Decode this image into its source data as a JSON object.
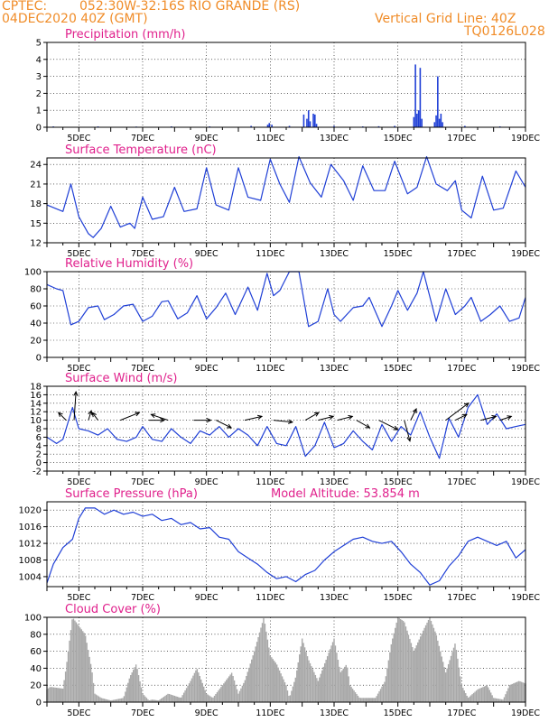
{
  "header": {
    "source": "CPTEC:",
    "location": "052:30W-32:16S  RIO GRANDE (RS)",
    "run": "04DEC2020 40Z (GMT)",
    "grid_note": "Vertical Grid Line: 40Z",
    "code": "TQ0126L028"
  },
  "colors": {
    "header": "#f08c28",
    "title": "#e0208c",
    "line": "#1f3fd6",
    "cloud": "#a8a8a8",
    "axis": "#000000"
  },
  "chart_data": [
    {
      "id": "precipitation",
      "type": "bar",
      "title": "Precipitation (mm/h)",
      "ylim": [
        0,
        5
      ],
      "yticks": [
        0,
        1,
        2,
        3,
        4,
        5
      ],
      "xlim": [
        4,
        19
      ],
      "xticks": [
        "5DEC",
        "7DEC",
        "9DEC",
        "11DEC",
        "13DEC",
        "15DEC",
        "17DEC",
        "19DEC"
      ],
      "grid": true,
      "x": [
        4.2,
        5.6,
        6.8,
        7.9,
        9.1,
        10.4,
        10.92,
        10.97,
        11.05,
        11.6,
        12.05,
        12.15,
        12.2,
        12.25,
        12.35,
        12.4,
        12.45,
        13.0,
        13.9,
        14.4,
        14.9,
        15.5,
        15.55,
        15.6,
        15.65,
        15.7,
        15.75,
        16.15,
        16.2,
        16.25,
        16.3,
        16.35,
        16.4,
        17.1,
        18.2
      ],
      "values": [
        0.05,
        0.05,
        0.04,
        0.05,
        0.05,
        0.08,
        0.15,
        0.25,
        0.15,
        0.08,
        0.75,
        0.5,
        1.0,
        0.35,
        0.8,
        0.75,
        0.2,
        0.08,
        0.05,
        0.06,
        0.08,
        0.6,
        3.7,
        0.8,
        1.0,
        3.5,
        0.5,
        0.3,
        0.7,
        3.0,
        0.5,
        0.8,
        0.3,
        0.08,
        0.05
      ]
    },
    {
      "id": "temperature",
      "type": "line",
      "title": "Surface Temperature (nC)",
      "ylim": [
        12,
        25
      ],
      "yticks": [
        12,
        15,
        18,
        21,
        24
      ],
      "xlim": [
        4,
        19
      ],
      "xticks": [
        "5DEC",
        "7DEC",
        "9DEC",
        "11DEC",
        "13DEC",
        "15DEC",
        "17DEC",
        "19DEC"
      ],
      "grid": true,
      "x": [
        4.0,
        4.3,
        4.5,
        4.75,
        5.0,
        5.3,
        5.45,
        5.7,
        6.0,
        6.3,
        6.6,
        6.75,
        7.0,
        7.3,
        7.65,
        8.0,
        8.3,
        8.7,
        9.0,
        9.3,
        9.7,
        10.0,
        10.3,
        10.7,
        11.0,
        11.3,
        11.6,
        11.9,
        12.25,
        12.6,
        12.9,
        13.3,
        13.6,
        13.9,
        14.25,
        14.6,
        14.9,
        15.3,
        15.6,
        15.9,
        16.2,
        16.55,
        16.8,
        17.0,
        17.3,
        17.65,
        18.0,
        18.3,
        18.7,
        19.0
      ],
      "values": [
        17.8,
        17.2,
        16.8,
        21.0,
        16.0,
        13.4,
        12.8,
        14.2,
        17.6,
        14.4,
        15.0,
        14.2,
        19.0,
        15.6,
        16.0,
        20.5,
        16.8,
        17.2,
        23.5,
        17.8,
        17.0,
        23.5,
        19.0,
        18.5,
        24.8,
        21.0,
        18.2,
        25.2,
        21.2,
        19.0,
        24.0,
        21.5,
        18.5,
        23.8,
        20.0,
        20.0,
        24.5,
        19.5,
        20.5,
        25.2,
        21.0,
        20.0,
        21.5,
        17.0,
        15.8,
        22.2,
        17.0,
        17.3,
        23.0,
        20.5
      ]
    },
    {
      "id": "humidity",
      "type": "line",
      "title": "Relative Humidity (%)",
      "ylim": [
        0,
        100
      ],
      "yticks": [
        0,
        20,
        40,
        60,
        80,
        100
      ],
      "xlim": [
        4,
        19
      ],
      "xticks": [
        "5DEC",
        "7DEC",
        "9DEC",
        "11DEC",
        "13DEC",
        "15DEC",
        "17DEC",
        "19DEC"
      ],
      "grid": true,
      "x": [
        4.0,
        4.3,
        4.5,
        4.75,
        5.0,
        5.3,
        5.6,
        5.8,
        6.1,
        6.4,
        6.7,
        7.0,
        7.3,
        7.6,
        7.8,
        8.1,
        8.4,
        8.7,
        9.0,
        9.3,
        9.6,
        9.9,
        10.3,
        10.6,
        10.9,
        11.1,
        11.3,
        11.6,
        11.9,
        12.2,
        12.5,
        12.8,
        13.0,
        13.2,
        13.6,
        13.9,
        14.1,
        14.5,
        14.8,
        15.0,
        15.3,
        15.6,
        15.8,
        16.2,
        16.5,
        16.8,
        17.1,
        17.3,
        17.6,
        17.9,
        18.2,
        18.5,
        18.8,
        19.0
      ],
      "values": [
        85,
        80,
        78,
        38,
        42,
        58,
        60,
        44,
        50,
        60,
        62,
        42,
        48,
        65,
        66,
        45,
        52,
        72,
        45,
        58,
        75,
        50,
        82,
        55,
        98,
        72,
        78,
        100,
        100,
        36,
        42,
        80,
        50,
        42,
        58,
        60,
        70,
        36,
        60,
        78,
        55,
        75,
        100,
        42,
        80,
        50,
        60,
        70,
        42,
        50,
        60,
        42,
        46,
        70
      ]
    },
    {
      "id": "wind",
      "type": "line",
      "title": "Surface Wind (m/s)",
      "ylim": [
        -2,
        18
      ],
      "yticks": [
        -2,
        0,
        2,
        4,
        6,
        8,
        10,
        12,
        14,
        16,
        18
      ],
      "xlim": [
        4,
        19
      ],
      "xticks": [
        "5DEC",
        "7DEC",
        "9DEC",
        "11DEC",
        "13DEC",
        "15DEC",
        "17DEC",
        "19DEC"
      ],
      "grid": true,
      "x": [
        4.0,
        4.3,
        4.5,
        4.8,
        5.0,
        5.3,
        5.6,
        5.9,
        6.2,
        6.5,
        6.8,
        7.0,
        7.3,
        7.6,
        7.9,
        8.2,
        8.5,
        8.8,
        9.1,
        9.4,
        9.7,
        10.0,
        10.3,
        10.6,
        10.9,
        11.2,
        11.5,
        11.8,
        12.1,
        12.4,
        12.7,
        13.0,
        13.3,
        13.6,
        13.9,
        14.2,
        14.5,
        14.8,
        15.1,
        15.4,
        15.7,
        16.0,
        16.3,
        16.6,
        16.9,
        17.2,
        17.5,
        17.8,
        18.1,
        18.4,
        18.7,
        19.0
      ],
      "values": [
        6.0,
        4.5,
        5.5,
        13.0,
        8.0,
        7.5,
        6.5,
        8.0,
        5.5,
        5.0,
        6.0,
        8.5,
        5.5,
        5.0,
        8.0,
        6.0,
        4.5,
        7.5,
        6.5,
        8.5,
        6.0,
        8.0,
        6.5,
        4.0,
        8.5,
        4.5,
        4.0,
        8.5,
        1.5,
        4.0,
        9.5,
        3.5,
        4.5,
        7.5,
        5.0,
        3.0,
        9.0,
        5.0,
        8.5,
        6.5,
        12.0,
        6.0,
        1.0,
        10.5,
        6.0,
        13.0,
        16.0,
        9.0,
        11.5,
        8.0,
        8.5,
        9.0
      ],
      "vectors": {
        "x": [
          4.6,
          4.85,
          5.3,
          5.6,
          6.3,
          7.2,
          7.8,
          8.6,
          9.3,
          10.2,
          11.1,
          12.1,
          12.5,
          13.1,
          13.7,
          14.4,
          15.2,
          15.4,
          16.5,
          16.8,
          17.6,
          18.2
        ],
        "u": [
          -4,
          1,
          1.5,
          -3,
          10,
          8,
          -9,
          9,
          8,
          9,
          10,
          7,
          8,
          8,
          7,
          10,
          3,
          3,
          12,
          6,
          8,
          6
        ],
        "v": [
          -4,
          -15,
          -5,
          -4,
          -4,
          0,
          -3,
          0,
          4,
          -2,
          1,
          -4,
          -2,
          -2,
          4,
          5,
          11,
          -6,
          -9,
          -3,
          -2,
          -2
        ]
      }
    },
    {
      "id": "pressure",
      "type": "line",
      "title": "Surface Pressure (hPa)",
      "annotation": "Model Altitude: 53.854 m",
      "ylim": [
        1001.6,
        1022
      ],
      "yticks": [
        1004,
        1008,
        1012,
        1016,
        1020
      ],
      "xlim": [
        4,
        19
      ],
      "xticks": [
        "5DEC",
        "7DEC",
        "9DEC",
        "11DEC",
        "13DEC",
        "15DEC",
        "17DEC",
        "19DEC"
      ],
      "grid": true,
      "x": [
        4.0,
        4.2,
        4.5,
        4.8,
        5.0,
        5.2,
        5.5,
        5.8,
        6.1,
        6.4,
        6.7,
        7.0,
        7.3,
        7.6,
        7.9,
        8.2,
        8.5,
        8.8,
        9.1,
        9.4,
        9.7,
        10.0,
        10.3,
        10.6,
        10.9,
        11.2,
        11.5,
        11.8,
        12.1,
        12.4,
        12.7,
        13.0,
        13.3,
        13.6,
        13.9,
        14.2,
        14.5,
        14.8,
        15.1,
        15.4,
        15.7,
        16.0,
        16.3,
        16.6,
        16.9,
        17.2,
        17.5,
        17.8,
        18.1,
        18.4,
        18.7,
        19.0
      ],
      "values": [
        1002.5,
        1007.0,
        1011.0,
        1013.0,
        1018.0,
        1020.5,
        1020.5,
        1019.0,
        1020.0,
        1019.0,
        1019.5,
        1018.5,
        1019.0,
        1017.5,
        1018.0,
        1016.5,
        1017.0,
        1015.5,
        1015.8,
        1013.5,
        1013.0,
        1010.0,
        1008.5,
        1007.0,
        1005.0,
        1003.5,
        1004.0,
        1002.8,
        1004.5,
        1005.5,
        1008.0,
        1010.0,
        1011.5,
        1013.0,
        1013.5,
        1012.5,
        1012.0,
        1012.5,
        1010.0,
        1007.0,
        1005.0,
        1002.0,
        1003.0,
        1006.5,
        1009.0,
        1012.5,
        1013.5,
        1012.5,
        1011.5,
        1012.5,
        1008.5,
        1010.5
      ]
    },
    {
      "id": "cloud",
      "type": "bar",
      "title": "Cloud Cover (%)",
      "ylim": [
        0,
        100
      ],
      "yticks": [
        0,
        20,
        40,
        60,
        80,
        100
      ],
      "xlim": [
        4,
        19
      ],
      "xticks": [
        "5DEC",
        "7DEC",
        "9DEC",
        "11DEC",
        "13DEC",
        "15DEC",
        "17DEC",
        "19DEC"
      ],
      "grid": true,
      "profile_x": [
        4.0,
        4.1,
        4.5,
        4.6,
        4.75,
        4.8,
        5.0,
        5.2,
        5.4,
        5.5,
        5.7,
        6.0,
        6.4,
        6.6,
        6.8,
        7.0,
        7.2,
        7.3,
        7.5,
        7.8,
        8.2,
        8.5,
        8.7,
        9.0,
        9.2,
        9.5,
        9.8,
        10.0,
        10.2,
        10.5,
        10.8,
        11.0,
        11.2,
        11.5,
        11.6,
        11.8,
        12.0,
        12.2,
        12.5,
        12.7,
        13.0,
        13.2,
        13.4,
        13.5,
        13.8,
        14.0,
        14.3,
        14.6,
        14.8,
        15.0,
        15.2,
        15.5,
        15.8,
        16.0,
        16.2,
        16.5,
        16.8,
        17.0,
        17.2,
        17.5,
        17.8,
        18.0,
        18.3,
        18.5,
        18.8,
        19.0
      ],
      "profile_y": [
        15,
        18,
        16,
        40,
        85,
        100,
        90,
        80,
        40,
        10,
        5,
        2,
        5,
        30,
        45,
        10,
        2,
        3,
        2,
        10,
        5,
        25,
        40,
        10,
        5,
        20,
        35,
        10,
        25,
        60,
        100,
        55,
        45,
        20,
        5,
        30,
        75,
        50,
        25,
        45,
        75,
        35,
        45,
        20,
        5,
        5,
        5,
        25,
        70,
        100,
        95,
        60,
        85,
        100,
        80,
        35,
        70,
        20,
        5,
        15,
        20,
        5,
        3,
        20,
        25,
        22
      ]
    }
  ]
}
